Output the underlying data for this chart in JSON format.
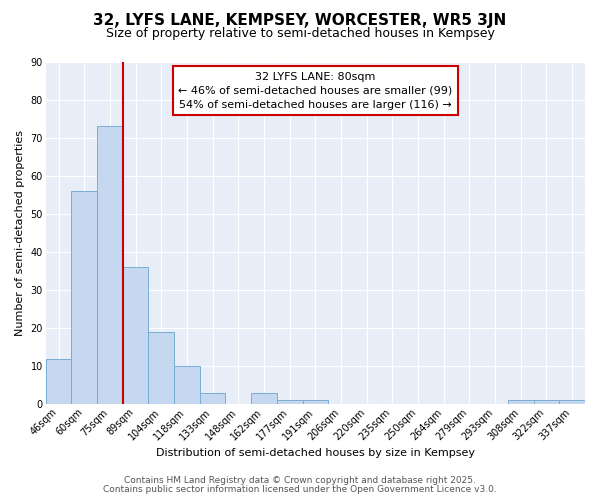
{
  "title": "32, LYFS LANE, KEMPSEY, WORCESTER, WR5 3JN",
  "subtitle": "Size of property relative to semi-detached houses in Kempsey",
  "xlabel": "Distribution of semi-detached houses by size in Kempsey",
  "ylabel": "Number of semi-detached properties",
  "bar_labels": [
    "46sqm",
    "60sqm",
    "75sqm",
    "89sqm",
    "104sqm",
    "118sqm",
    "133sqm",
    "148sqm",
    "162sqm",
    "177sqm",
    "191sqm",
    "206sqm",
    "220sqm",
    "235sqm",
    "250sqm",
    "264sqm",
    "279sqm",
    "293sqm",
    "308sqm",
    "322sqm",
    "337sqm"
  ],
  "bar_values": [
    12,
    56,
    73,
    36,
    19,
    10,
    3,
    0,
    3,
    1,
    1,
    0,
    0,
    0,
    0,
    0,
    0,
    0,
    1,
    1,
    1
  ],
  "bar_color": "#c5d8f0",
  "bar_edge_color": "#7aadd4",
  "vline_x_index": 2,
  "vline_color": "#cc0000",
  "annotation_title": "32 LYFS LANE: 80sqm",
  "annotation_line1": "← 46% of semi-detached houses are smaller (99)",
  "annotation_line2": "54% of semi-detached houses are larger (116) →",
  "annotation_box_facecolor": "#ffffff",
  "annotation_box_edgecolor": "#cc0000",
  "ylim": [
    0,
    90
  ],
  "yticks": [
    0,
    10,
    20,
    30,
    40,
    50,
    60,
    70,
    80,
    90
  ],
  "bg_color": "#ffffff",
  "plot_bg_color": "#e8eef8",
  "grid_color": "#ffffff",
  "footer1": "Contains HM Land Registry data © Crown copyright and database right 2025.",
  "footer2": "Contains public sector information licensed under the Open Government Licence v3.0.",
  "title_fontsize": 11,
  "subtitle_fontsize": 9,
  "axis_label_fontsize": 8,
  "tick_fontsize": 7,
  "annotation_fontsize": 8,
  "footer_fontsize": 6.5
}
